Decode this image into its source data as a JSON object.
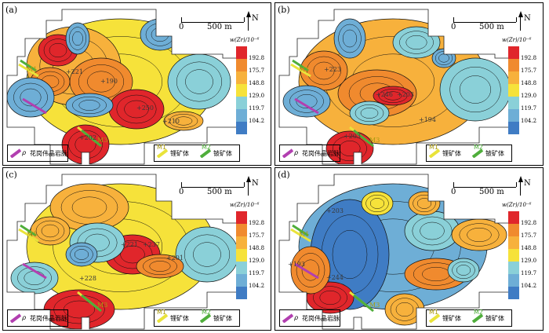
{
  "panels": [
    {
      "label": "(a)",
      "samples": [
        {
          "text": "190",
          "x": 124,
          "y": 101
        },
        {
          "text": "221",
          "x": 80,
          "y": 89
        },
        {
          "text": "250",
          "x": 170,
          "y": 135
        },
        {
          "text": "210",
          "x": 203,
          "y": 152
        },
        {
          "text": "202",
          "x": 97,
          "y": 173
        }
      ],
      "ore_labels": [
        "M1",
        "M3"
      ]
    },
    {
      "label": "(b)",
      "samples": [
        {
          "text": "223",
          "x": 62,
          "y": 86
        },
        {
          "text": "246",
          "x": 128,
          "y": 118
        },
        {
          "text": "203",
          "x": 155,
          "y": 118
        },
        {
          "text": "194",
          "x": 183,
          "y": 150
        },
        {
          "text": "203",
          "x": 87,
          "y": 171
        }
      ],
      "ore_labels": [
        "M1",
        "M3"
      ]
    },
    {
      "label": "(c)",
      "samples": [
        {
          "text": "221",
          "x": 150,
          "y": 99
        },
        {
          "text": "237",
          "x": 178,
          "y": 99
        },
        {
          "text": "201",
          "x": 208,
          "y": 116
        },
        {
          "text": "228",
          "x": 97,
          "y": 142
        }
      ],
      "ore_labels": [
        "M1",
        "M3"
      ]
    },
    {
      "label": "(d)",
      "samples": [
        {
          "text": "203",
          "x": 65,
          "y": 56
        },
        {
          "text": "193",
          "x": 16,
          "y": 124
        },
        {
          "text": "244",
          "x": 65,
          "y": 141
        }
      ],
      "ore_labels": [
        "M1",
        "M3"
      ]
    }
  ],
  "scale_bar": {
    "zero": "0",
    "length": "500 m"
  },
  "north_label": "N",
  "legend": {
    "title": "w(Zr)/10⁻⁶",
    "classes": [
      {
        "value": "192.8",
        "color": "#e0262b"
      },
      {
        "value": "175.7",
        "color": "#f08a2e"
      },
      {
        "value": "148.8",
        "color": "#f7b13c"
      },
      {
        "value": "129.0",
        "color": "#f6e23a"
      },
      {
        "value": "119.7",
        "color": "#8ad0d8"
      },
      {
        "value": "104.2",
        "color": "#6eaed6"
      },
      {
        "value": "",
        "color": "#3f7cc4"
      }
    ]
  },
  "map_legend": {
    "pegmatite": {
      "symbol": "ρ",
      "label": "花岗伟晶岩脉",
      "color": "#b23fb0"
    },
    "li_ore": {
      "code": "M1",
      "label": "锂矿体",
      "color": "#e9e33a"
    },
    "be_ore": {
      "code": "M2",
      "label": "铍矿体",
      "color": "#4fae3b"
    }
  }
}
